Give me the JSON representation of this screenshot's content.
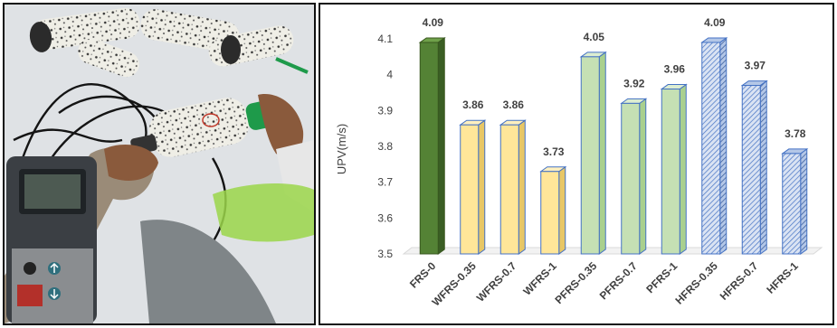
{
  "photo": {
    "icons": [
      "arrow-up-icon",
      "arrow-down-icon"
    ]
  },
  "chart_data": {
    "type": "bar",
    "title": "",
    "xlabel": "",
    "ylabel": "UPV(m/s)",
    "ylim": [
      3.5,
      4.1
    ],
    "yticks": [
      "3.5",
      "3.6",
      "3.7",
      "3.8",
      "3.9",
      "4",
      "4.1"
    ],
    "categories": [
      "FRS-0",
      "WFRS-0.35",
      "WFRS-0.7",
      "WFRS-1",
      "PFRS-0.35",
      "PFRS-0.7",
      "PFRS-1",
      "HFRS-0.35",
      "HFRS-0.7",
      "HFRS-1"
    ],
    "values": [
      4.09,
      3.86,
      3.86,
      3.73,
      4.05,
      3.92,
      3.96,
      4.09,
      3.97,
      3.78
    ],
    "value_labels": [
      "4.09",
      "3.86",
      "3.86",
      "3.73",
      "4.05",
      "3.92",
      "3.96",
      "4.09",
      "3.97",
      "3.78"
    ],
    "bar_styles": [
      "dark-green",
      "yellow",
      "yellow",
      "yellow",
      "light-green",
      "light-green",
      "light-green",
      "blue-hatched",
      "blue-hatched",
      "blue-hatched"
    ],
    "colors": {
      "dark-green": "#548235",
      "yellow": "#ffe699",
      "light-green": "#c5e0b4",
      "blue-hatched": "#b4c7e7",
      "bar_outline": "#4472c4"
    },
    "grid": false,
    "legend": "none"
  }
}
